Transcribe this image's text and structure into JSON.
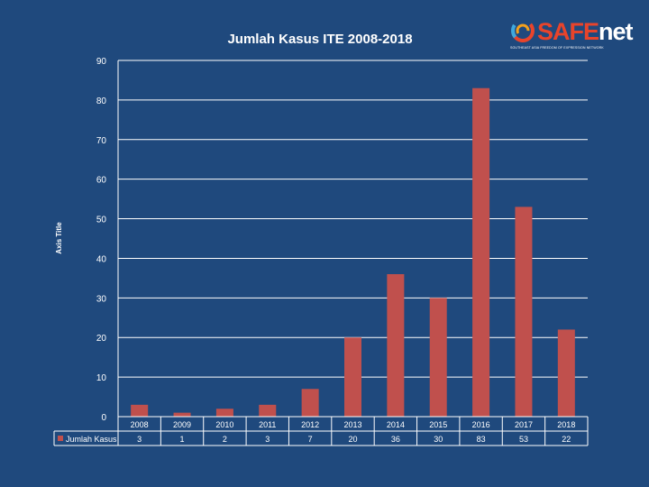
{
  "logo": {
    "brand_a": "SAFE",
    "brand_b": "net",
    "tagline": "SOUTHEAST ASIA FREEDOM OF EXPRESSION NETWORK"
  },
  "chart_data": {
    "type": "bar",
    "title": "Jumlah Kasus ITE 2008-2018",
    "xlabel": "",
    "ylabel": "Axis Title",
    "categories": [
      "2008",
      "2009",
      "2010",
      "2011",
      "2012",
      "2013",
      "2014",
      "2015",
      "2016",
      "2017",
      "2018"
    ],
    "series": [
      {
        "name": "Jumlah Kasus",
        "values": [
          3,
          1,
          2,
          3,
          7,
          20,
          36,
          30,
          83,
          53,
          22
        ],
        "color": "#c0504d"
      }
    ],
    "ylim": [
      0,
      90
    ],
    "yticks": [
      0,
      10,
      20,
      30,
      40,
      50,
      60,
      70,
      80,
      90
    ],
    "grid": true,
    "data_table": true,
    "colors": {
      "background": "#1f497d",
      "bar": "#c0504d",
      "grid": "#ffffff",
      "text": "#ffffff"
    }
  }
}
